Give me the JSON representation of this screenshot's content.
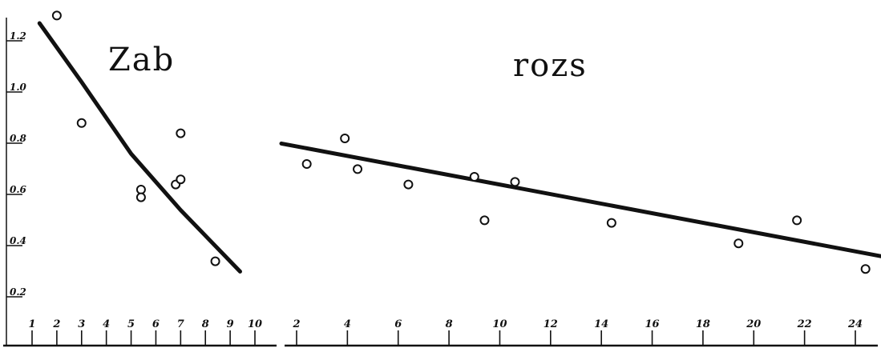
{
  "chart_data": [
    {
      "type": "scatter",
      "title": "Zab",
      "xlabel": "",
      "ylabel": "",
      "xlim": [
        0.9,
        10.2
      ],
      "ylim": [
        0.2,
        1.3
      ],
      "x_ticks": [
        1,
        2,
        3,
        4,
        5,
        6,
        7,
        8,
        9,
        10
      ],
      "x_tick_labels": [
        "1",
        "2",
        "3",
        "4",
        "5",
        "6",
        "7",
        "8",
        "9",
        "10"
      ],
      "y_ticks": [
        0.2,
        0.4,
        0.6,
        0.8,
        1.0,
        1.2
      ],
      "y_tick_labels": [
        "0.2",
        "0.4",
        "0.6",
        "0.8",
        "1.0",
        "1.2"
      ],
      "series": [
        {
          "points": [
            {
              "x": 2.0,
              "y": 1.28
            },
            {
              "x": 3.0,
              "y": 0.86
            },
            {
              "x": 5.4,
              "y": 0.6
            },
            {
              "x": 5.4,
              "y": 0.57
            },
            {
              "x": 6.8,
              "y": 0.62
            },
            {
              "x": 7.0,
              "y": 0.82
            },
            {
              "x": 7.0,
              "y": 0.64
            },
            {
              "x": 8.4,
              "y": 0.32
            }
          ]
        }
      ],
      "trend_line": [
        {
          "x": 1.3,
          "y": 1.25
        },
        {
          "x": 3.0,
          "y": 1.02
        },
        {
          "x": 5.0,
          "y": 0.74
        },
        {
          "x": 7.0,
          "y": 0.52
        },
        {
          "x": 9.4,
          "y": 0.28
        }
      ],
      "grid": false,
      "legend": "none"
    },
    {
      "type": "scatter",
      "title": "rozs",
      "xlabel": "",
      "ylabel": "",
      "xlim": [
        1.3,
        25.0
      ],
      "ylim": [
        0.2,
        1.3
      ],
      "x_ticks": [
        2,
        4,
        6,
        8,
        10,
        12,
        14,
        16,
        18,
        20,
        22,
        24
      ],
      "x_tick_labels": [
        "2",
        "4",
        "6",
        "8",
        "10",
        "12",
        "14",
        "16",
        "18",
        "20",
        "22",
        "24"
      ],
      "series": [
        {
          "points": [
            {
              "x": 2.4,
              "y": 0.7
            },
            {
              "x": 3.9,
              "y": 0.8
            },
            {
              "x": 4.4,
              "y": 0.68
            },
            {
              "x": 6.4,
              "y": 0.62
            },
            {
              "x": 9.0,
              "y": 0.65
            },
            {
              "x": 9.4,
              "y": 0.48
            },
            {
              "x": 10.6,
              "y": 0.63
            },
            {
              "x": 14.4,
              "y": 0.47
            },
            {
              "x": 19.4,
              "y": 0.39
            },
            {
              "x": 21.7,
              "y": 0.48
            },
            {
              "x": 24.4,
              "y": 0.29
            }
          ]
        }
      ],
      "trend_line": [
        {
          "x": 1.4,
          "y": 0.78
        },
        {
          "x": 25.0,
          "y": 0.34
        }
      ],
      "grid": false,
      "legend": "none"
    }
  ]
}
